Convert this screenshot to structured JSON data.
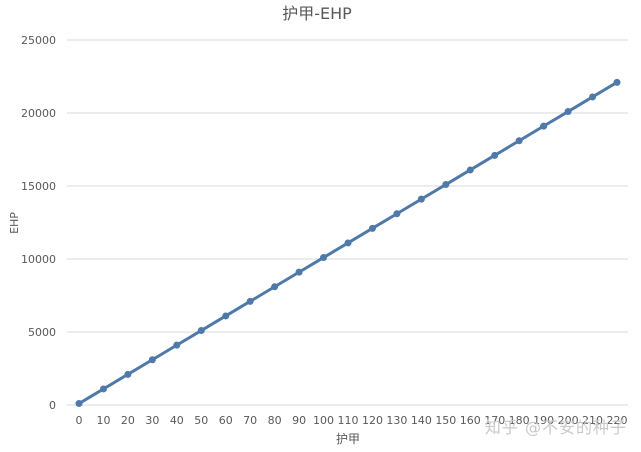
{
  "chart_data": {
    "type": "line",
    "title": "护甲-EHP",
    "xlabel": "护甲",
    "ylabel": "EHP",
    "x": [
      0,
      10,
      20,
      30,
      40,
      50,
      60,
      70,
      80,
      90,
      100,
      110,
      120,
      130,
      140,
      150,
      160,
      170,
      180,
      190,
      200,
      210,
      220
    ],
    "series": [
      {
        "values": [
          100,
          1100,
          2100,
          3100,
          4100,
          5100,
          6100,
          7100,
          8100,
          9100,
          10100,
          11100,
          12100,
          13100,
          14100,
          15100,
          16100,
          17100,
          18100,
          19100,
          20100,
          21100,
          22100
        ]
      }
    ],
    "ylim": [
      0,
      25000
    ],
    "yticks": [
      0,
      5000,
      10000,
      15000,
      20000,
      25000
    ],
    "grid": true,
    "legend": "none",
    "line_color": "#4e79a8",
    "grid_color": "#d9d9d9"
  },
  "watermark": "知乎 @不安的种子"
}
